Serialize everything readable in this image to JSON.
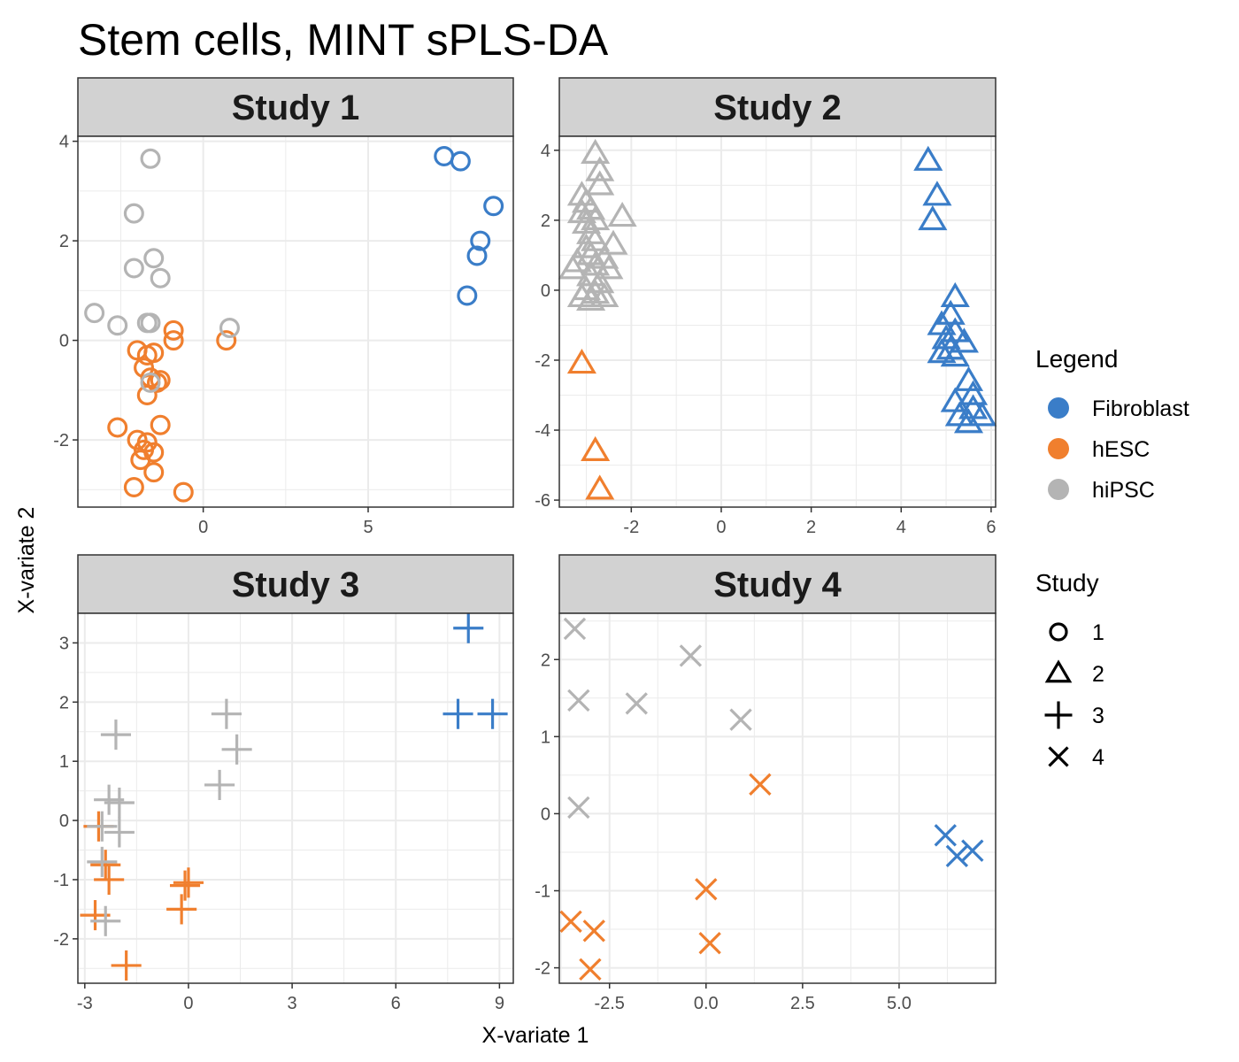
{
  "chart_data": {
    "type": "scatter",
    "title": "Stem cells, MINT sPLS-DA",
    "xlabel": "X-variate 1",
    "ylabel": "X-variate 2",
    "grid": true,
    "legend_position": "right",
    "colors": {
      "Fibroblast": "#3A7DC8",
      "hESC": "#F07F2E",
      "hiPSC": "#B4B4B4"
    },
    "legends": {
      "color": {
        "title": "Legend",
        "items": [
          "Fibroblast",
          "hESC",
          "hiPSC"
        ]
      },
      "shape": {
        "title": "Study",
        "items": [
          {
            "label": "1",
            "shape": "circle"
          },
          {
            "label": "2",
            "shape": "triangle"
          },
          {
            "label": "3",
            "shape": "plus"
          },
          {
            "label": "4",
            "shape": "cross"
          }
        ]
      }
    },
    "panels": [
      {
        "title": "Study 1",
        "shape": "circle",
        "xlim": [
          -3.8,
          9.4
        ],
        "ylim": [
          -3.35,
          4.1
        ],
        "xticks": [
          0,
          5
        ],
        "xticklabels": [
          "0",
          "5"
        ],
        "yticks": [
          -2,
          0,
          2,
          4
        ],
        "yticklabels": [
          "-2",
          "0",
          "2",
          "4"
        ],
        "points": [
          {
            "x": 7.3,
            "y": 3.7,
            "g": "Fibroblast"
          },
          {
            "x": 7.8,
            "y": 3.6,
            "g": "Fibroblast"
          },
          {
            "x": 8.8,
            "y": 2.7,
            "g": "Fibroblast"
          },
          {
            "x": 8.4,
            "y": 2.0,
            "g": "Fibroblast"
          },
          {
            "x": 8.3,
            "y": 1.7,
            "g": "Fibroblast"
          },
          {
            "x": 8.0,
            "y": 0.9,
            "g": "Fibroblast"
          },
          {
            "x": -0.9,
            "y": 0.2,
            "g": "hESC"
          },
          {
            "x": -0.9,
            "y": 0.0,
            "g": "hESC"
          },
          {
            "x": 0.7,
            "y": 0.0,
            "g": "hESC"
          },
          {
            "x": -2.0,
            "y": -0.2,
            "g": "hESC"
          },
          {
            "x": -1.7,
            "y": -0.3,
            "g": "hESC"
          },
          {
            "x": -1.5,
            "y": -0.25,
            "g": "hESC"
          },
          {
            "x": -1.8,
            "y": -0.55,
            "g": "hESC"
          },
          {
            "x": -1.6,
            "y": -0.75,
            "g": "hESC"
          },
          {
            "x": -1.4,
            "y": -0.85,
            "g": "hESC"
          },
          {
            "x": -1.3,
            "y": -0.8,
            "g": "hESC"
          },
          {
            "x": -1.7,
            "y": -1.1,
            "g": "hESC"
          },
          {
            "x": -2.6,
            "y": -1.75,
            "g": "hESC"
          },
          {
            "x": -1.3,
            "y": -1.7,
            "g": "hESC"
          },
          {
            "x": -2.0,
            "y": -2.0,
            "g": "hESC"
          },
          {
            "x": -1.7,
            "y": -2.05,
            "g": "hESC"
          },
          {
            "x": -1.8,
            "y": -2.2,
            "g": "hESC"
          },
          {
            "x": -1.5,
            "y": -2.25,
            "g": "hESC"
          },
          {
            "x": -1.9,
            "y": -2.4,
            "g": "hESC"
          },
          {
            "x": -1.5,
            "y": -2.65,
            "g": "hESC"
          },
          {
            "x": -2.1,
            "y": -2.95,
            "g": "hESC"
          },
          {
            "x": -0.6,
            "y": -3.05,
            "g": "hESC"
          },
          {
            "x": -1.6,
            "y": 3.65,
            "g": "hiPSC"
          },
          {
            "x": -2.1,
            "y": 2.55,
            "g": "hiPSC"
          },
          {
            "x": -1.5,
            "y": 1.65,
            "g": "hiPSC"
          },
          {
            "x": -2.1,
            "y": 1.45,
            "g": "hiPSC"
          },
          {
            "x": -1.3,
            "y": 1.25,
            "g": "hiPSC"
          },
          {
            "x": -3.3,
            "y": 0.55,
            "g": "hiPSC"
          },
          {
            "x": -2.6,
            "y": 0.3,
            "g": "hiPSC"
          },
          {
            "x": -1.7,
            "y": 0.35,
            "g": "hiPSC"
          },
          {
            "x": -1.6,
            "y": 0.35,
            "g": "hiPSC"
          },
          {
            "x": 0.8,
            "y": 0.25,
            "g": "hiPSC"
          },
          {
            "x": -1.6,
            "y": -0.85,
            "g": "hiPSC"
          }
        ]
      },
      {
        "title": "Study 2",
        "shape": "triangle",
        "xlim": [
          -3.6,
          6.1
        ],
        "ylim": [
          -6.2,
          4.4
        ],
        "xticks": [
          -2,
          0,
          2,
          4,
          6
        ],
        "xticklabels": [
          "-2",
          "0",
          "2",
          "4",
          "6"
        ],
        "yticks": [
          -6,
          -4,
          -2,
          0,
          2,
          4
        ],
        "yticklabels": [
          "-6",
          "-4",
          "-2",
          "0",
          "2",
          "4"
        ],
        "points": [
          {
            "x": 4.6,
            "y": 3.7,
            "g": "Fibroblast"
          },
          {
            "x": 4.8,
            "y": 2.7,
            "g": "Fibroblast"
          },
          {
            "x": 4.7,
            "y": 2.0,
            "g": "Fibroblast"
          },
          {
            "x": 5.2,
            "y": -0.2,
            "g": "Fibroblast"
          },
          {
            "x": 5.1,
            "y": -0.7,
            "g": "Fibroblast"
          },
          {
            "x": 4.9,
            "y": -1.0,
            "g": "Fibroblast"
          },
          {
            "x": 5.2,
            "y": -1.2,
            "g": "Fibroblast"
          },
          {
            "x": 5.0,
            "y": -1.4,
            "g": "Fibroblast"
          },
          {
            "x": 5.4,
            "y": -1.5,
            "g": "Fibroblast"
          },
          {
            "x": 5.1,
            "y": -1.7,
            "g": "Fibroblast"
          },
          {
            "x": 4.9,
            "y": -1.8,
            "g": "Fibroblast"
          },
          {
            "x": 5.2,
            "y": -1.9,
            "g": "Fibroblast"
          },
          {
            "x": 5.5,
            "y": -2.6,
            "g": "Fibroblast"
          },
          {
            "x": 5.6,
            "y": -3.0,
            "g": "Fibroblast"
          },
          {
            "x": 5.2,
            "y": -3.2,
            "g": "Fibroblast"
          },
          {
            "x": 5.6,
            "y": -3.4,
            "g": "Fibroblast"
          },
          {
            "x": 5.8,
            "y": -3.6,
            "g": "Fibroblast"
          },
          {
            "x": 5.3,
            "y": -3.6,
            "g": "Fibroblast"
          },
          {
            "x": 5.5,
            "y": -3.8,
            "g": "Fibroblast"
          },
          {
            "x": -3.1,
            "y": -2.1,
            "g": "hESC"
          },
          {
            "x": -2.8,
            "y": -4.6,
            "g": "hESC"
          },
          {
            "x": -2.7,
            "y": -5.7,
            "g": "hESC"
          },
          {
            "x": -2.8,
            "y": 3.9,
            "g": "hiPSC"
          },
          {
            "x": -2.7,
            "y": 3.4,
            "g": "hiPSC"
          },
          {
            "x": -2.7,
            "y": 3.0,
            "g": "hiPSC"
          },
          {
            "x": -3.1,
            "y": 2.7,
            "g": "hiPSC"
          },
          {
            "x": -3.0,
            "y": 2.5,
            "g": "hiPSC"
          },
          {
            "x": -2.9,
            "y": 2.3,
            "g": "hiPSC"
          },
          {
            "x": -3.1,
            "y": 2.2,
            "g": "hiPSC"
          },
          {
            "x": -2.2,
            "y": 2.1,
            "g": "hiPSC"
          },
          {
            "x": -2.8,
            "y": 2.0,
            "g": "hiPSC"
          },
          {
            "x": -3.0,
            "y": 1.9,
            "g": "hiPSC"
          },
          {
            "x": -2.9,
            "y": 1.6,
            "g": "hiPSC"
          },
          {
            "x": -2.8,
            "y": 1.4,
            "g": "hiPSC"
          },
          {
            "x": -3.0,
            "y": 1.2,
            "g": "hiPSC"
          },
          {
            "x": -2.4,
            "y": 1.3,
            "g": "hiPSC"
          },
          {
            "x": -2.9,
            "y": 1.0,
            "g": "hiPSC"
          },
          {
            "x": -2.6,
            "y": 0.9,
            "g": "hiPSC"
          },
          {
            "x": -3.2,
            "y": 0.8,
            "g": "hiPSC"
          },
          {
            "x": -2.8,
            "y": 0.7,
            "g": "hiPSC"
          },
          {
            "x": -3.3,
            "y": 0.6,
            "g": "hiPSC"
          },
          {
            "x": -2.5,
            "y": 0.6,
            "g": "hiPSC"
          },
          {
            "x": -2.9,
            "y": 0.4,
            "g": "hiPSC"
          },
          {
            "x": -2.7,
            "y": 0.2,
            "g": "hiPSC"
          },
          {
            "x": -3.0,
            "y": 0.0,
            "g": "hiPSC"
          },
          {
            "x": -2.8,
            "y": -0.1,
            "g": "hiPSC"
          },
          {
            "x": -3.1,
            "y": -0.2,
            "g": "hiPSC"
          },
          {
            "x": -2.6,
            "y": -0.2,
            "g": "hiPSC"
          },
          {
            "x": -2.9,
            "y": -0.3,
            "g": "hiPSC"
          }
        ]
      },
      {
        "title": "Study 3",
        "shape": "plus",
        "xlim": [
          -3.2,
          9.4
        ],
        "ylim": [
          -2.75,
          3.5
        ],
        "xticks": [
          -3,
          0,
          3,
          6,
          9
        ],
        "xticklabels": [
          "-3",
          "0",
          "3",
          "6",
          "9"
        ],
        "yticks": [
          -2,
          -1,
          0,
          1,
          2,
          3
        ],
        "yticklabels": [
          "-2",
          "-1",
          "0",
          "1",
          "2",
          "3"
        ],
        "points": [
          {
            "x": 8.1,
            "y": 3.25,
            "g": "Fibroblast"
          },
          {
            "x": 7.8,
            "y": 1.8,
            "g": "Fibroblast"
          },
          {
            "x": 8.8,
            "y": 1.8,
            "g": "Fibroblast"
          },
          {
            "x": -2.6,
            "y": -0.1,
            "g": "hESC"
          },
          {
            "x": -2.4,
            "y": -0.75,
            "g": "hESC"
          },
          {
            "x": -2.3,
            "y": -1.0,
            "g": "hESC"
          },
          {
            "x": 0.0,
            "y": -1.05,
            "g": "hESC"
          },
          {
            "x": -0.1,
            "y": -1.1,
            "g": "hESC"
          },
          {
            "x": -0.2,
            "y": -1.5,
            "g": "hESC"
          },
          {
            "x": -2.7,
            "y": -1.6,
            "g": "hESC"
          },
          {
            "x": -1.8,
            "y": -2.45,
            "g": "hESC"
          },
          {
            "x": 1.1,
            "y": 1.8,
            "g": "hiPSC"
          },
          {
            "x": 1.4,
            "y": 1.2,
            "g": "hiPSC"
          },
          {
            "x": 0.9,
            "y": 0.6,
            "g": "hiPSC"
          },
          {
            "x": -2.1,
            "y": 1.45,
            "g": "hiPSC"
          },
          {
            "x": -2.3,
            "y": 0.35,
            "g": "hiPSC"
          },
          {
            "x": -2.0,
            "y": 0.3,
            "g": "hiPSC"
          },
          {
            "x": -2.0,
            "y": -0.2,
            "g": "hiPSC"
          },
          {
            "x": -2.5,
            "y": -0.1,
            "g": "hiPSC"
          },
          {
            "x": -2.5,
            "y": -0.7,
            "g": "hiPSC"
          },
          {
            "x": -2.4,
            "y": -1.7,
            "g": "hiPSC"
          }
        ]
      },
      {
        "title": "Study 4",
        "shape": "cross",
        "xlim": [
          -3.8,
          7.5
        ],
        "ylim": [
          -2.2,
          2.6
        ],
        "xticks": [
          -2.5,
          0,
          2.5,
          5
        ],
        "xticklabels": [
          "-2.5",
          "0.0",
          "2.5",
          "5.0"
        ],
        "yticks": [
          -2,
          -1,
          0,
          1,
          2
        ],
        "yticklabels": [
          "-2",
          "-1",
          "0",
          "1",
          "2"
        ],
        "points": [
          {
            "x": 6.2,
            "y": -0.28,
            "g": "Fibroblast"
          },
          {
            "x": 6.5,
            "y": -0.55,
            "g": "Fibroblast"
          },
          {
            "x": 6.9,
            "y": -0.48,
            "g": "Fibroblast"
          },
          {
            "x": 1.4,
            "y": 0.38,
            "g": "hESC"
          },
          {
            "x": 0.0,
            "y": -0.98,
            "g": "hESC"
          },
          {
            "x": 0.1,
            "y": -1.68,
            "g": "hESC"
          },
          {
            "x": -3.5,
            "y": -1.4,
            "g": "hESC"
          },
          {
            "x": -2.9,
            "y": -1.52,
            "g": "hESC"
          },
          {
            "x": -3.0,
            "y": -2.02,
            "g": "hESC"
          },
          {
            "x": -3.4,
            "y": 2.4,
            "g": "hiPSC"
          },
          {
            "x": -0.4,
            "y": 2.05,
            "g": "hiPSC"
          },
          {
            "x": -3.3,
            "y": 1.47,
            "g": "hiPSC"
          },
          {
            "x": -1.8,
            "y": 1.43,
            "g": "hiPSC"
          },
          {
            "x": 0.9,
            "y": 1.22,
            "g": "hiPSC"
          },
          {
            "x": -3.3,
            "y": 0.08,
            "g": "hiPSC"
          }
        ]
      }
    ]
  }
}
